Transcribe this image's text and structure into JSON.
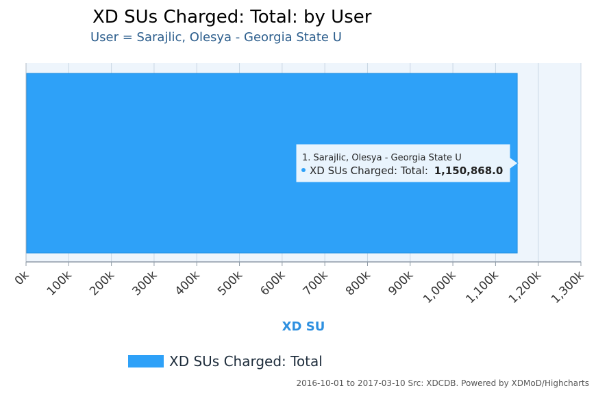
{
  "chart_data": {
    "type": "bar",
    "orientation": "horizontal",
    "title": "XD SUs Charged: Total: by User",
    "subtitle": "User = Sarajlic, Olesya - Georgia State U",
    "categories": [
      "1. Sarajlic, Olesya - Georgia State U"
    ],
    "series": [
      {
        "name": "XD SUs Charged: Total",
        "values": [
          1150868.0
        ]
      }
    ],
    "xlabel": "XD SU",
    "xlim": [
      0,
      1300000
    ],
    "ticks": [
      "0k",
      "100k",
      "200k",
      "300k",
      "400k",
      "500k",
      "600k",
      "700k",
      "800k",
      "900k",
      "1,000k",
      "1,100k",
      "1,200k",
      "1,300k"
    ],
    "grid": true,
    "legend_position": "bottom-left",
    "tooltip": {
      "header": "1. Sarajlic, Olesya - Georgia State U",
      "series_label": "XD SUs Charged: Total:",
      "value_text": "1,150,868.0"
    },
    "credits": "2016-10-01 to 2017-03-10 Src: XDCDB. Powered by XDMoD/Highcharts",
    "colors": {
      "bar": "#2ea1f8",
      "bar_border": "#1f8ee0",
      "plot_bg": "#eef5fc",
      "grid": "#c9d6e3",
      "axis_title": "#2e90e0"
    }
  }
}
